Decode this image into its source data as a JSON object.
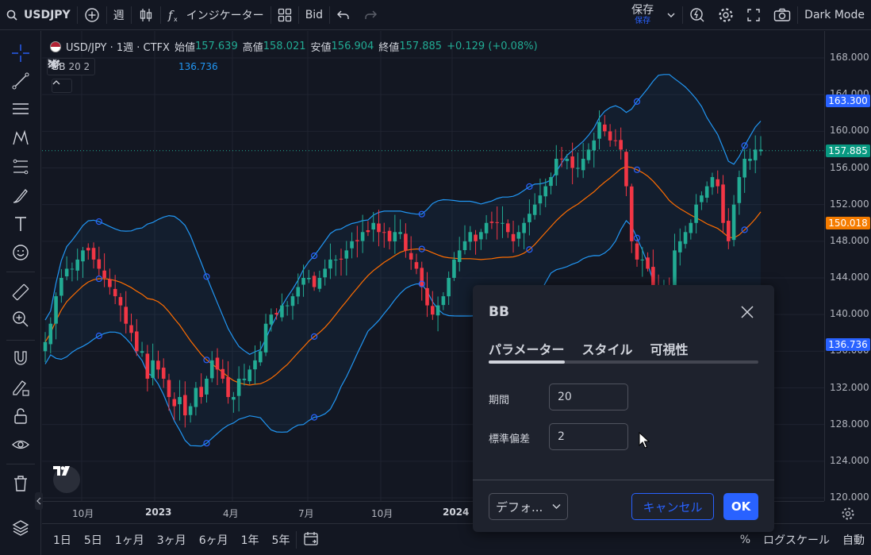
{
  "topbar": {
    "symbol": "USDJPY",
    "interval": "週",
    "indicators": "インジケーター",
    "price_type": "Bid",
    "save": "保存",
    "save_sub": "保存",
    "theme": "Dark Mode"
  },
  "legend": {
    "title": "USD/JPY · 1週 · CTFX",
    "open_label": "始値",
    "open": "157.639",
    "high_label": "高値",
    "high": "158.021",
    "low_label": "安値",
    "low": "156.904",
    "close_label": "終値",
    "close": "157.885",
    "change": "+0.129 (+0.08%)"
  },
  "indicator": {
    "name": "BB",
    "params": "20 2",
    "value": "136.736"
  },
  "price_scale": {
    "ticks": [
      "168.000",
      "164.000",
      "160.000",
      "156.000",
      "152.000",
      "148.000",
      "144.000",
      "140.000",
      "136.000",
      "132.000",
      "128.000",
      "124.000",
      "120.000"
    ],
    "labels": {
      "upper": "163.300",
      "last": "157.885",
      "basis": "150.018",
      "lower": "136.736"
    }
  },
  "time_axis": [
    "10月",
    "2023",
    "4月",
    "7月",
    "10月",
    "2024"
  ],
  "bottombar": {
    "ranges": [
      "1日",
      "5日",
      "1ヶ月",
      "3ヶ月",
      "6ヶ月",
      "1年",
      "5年"
    ],
    "percent": "%",
    "log": "ログスケール",
    "auto": "自動"
  },
  "dialog": {
    "title": "BB",
    "tabs": [
      "パラメーター",
      "スタイル",
      "可視性"
    ],
    "period_label": "期間",
    "period_value": "20",
    "stddev_label": "標準偏差",
    "stddev_value": "2",
    "defaults": "デフォ...",
    "cancel": "キャンセル",
    "ok": "OK"
  },
  "colors": {
    "up": "#22ab94",
    "down": "#f23645",
    "band": "#2196f3",
    "basis": "#ff6d00",
    "accent": "#2962ff"
  },
  "chart_data": {
    "type": "candlestick",
    "symbol": "USD/JPY",
    "interval": "1W",
    "last_close": 157.885,
    "bb_upper_last": 163.3,
    "bb_basis_last": 150.018,
    "bb_lower_last": 136.736,
    "ylim": [
      120,
      168
    ],
    "x_ticks": [
      "10月",
      "2023",
      "4月",
      "7月",
      "10月",
      "2024"
    ],
    "closes": [
      137,
      139,
      142,
      144,
      145,
      145,
      146,
      147,
      147,
      146,
      145,
      144,
      143,
      142,
      141,
      139,
      138,
      136,
      136,
      133,
      135,
      134,
      133,
      131,
      130,
      131,
      129,
      130,
      132,
      131,
      133,
      135,
      134,
      133,
      131,
      131,
      133,
      133,
      134,
      135,
      136,
      139,
      140,
      140,
      141,
      141,
      142,
      143,
      144,
      144,
      143,
      144,
      145,
      146,
      146,
      146,
      147,
      148,
      148,
      149,
      149,
      150,
      149,
      149,
      148,
      149,
      149,
      147,
      146,
      145,
      143,
      141,
      140,
      141,
      142,
      144,
      146,
      147,
      148,
      149,
      148,
      149,
      150,
      150,
      150,
      150,
      149,
      148,
      149,
      150,
      151,
      152,
      153,
      154,
      155,
      157,
      157,
      157,
      156,
      156,
      157,
      158,
      159,
      161,
      160,
      159,
      159,
      158,
      154,
      148,
      146,
      146,
      145,
      143,
      142,
      143,
      142,
      147,
      148,
      149,
      150,
      152,
      153,
      154,
      155,
      154,
      150,
      148,
      152,
      155,
      157,
      157,
      158,
      158
    ]
  }
}
